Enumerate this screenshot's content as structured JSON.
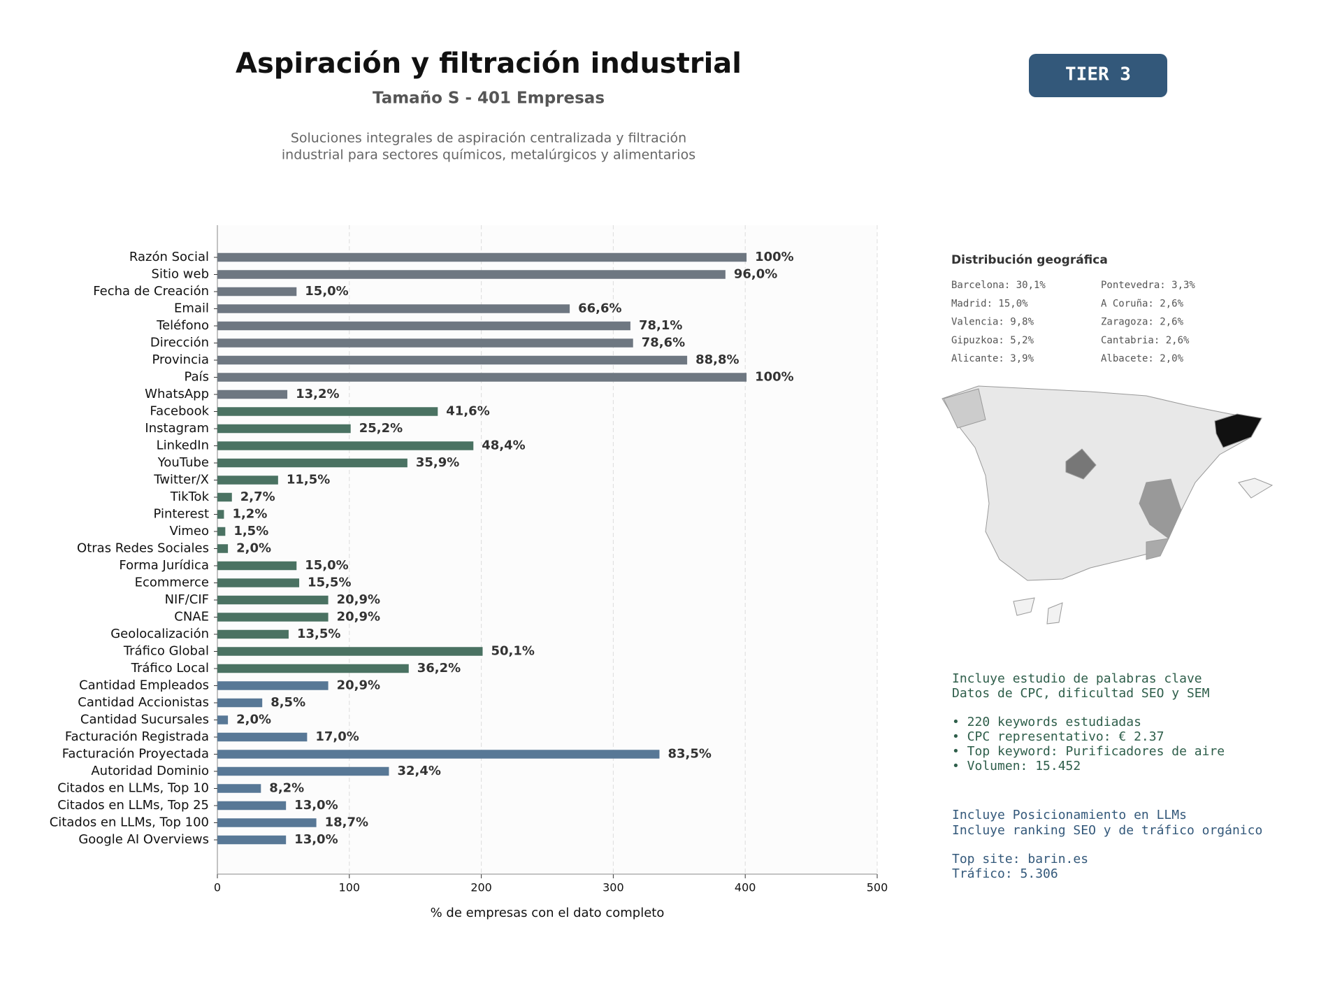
{
  "chart_data": {
    "type": "barh",
    "title": "Aspiración y filtración industrial",
    "subtitle": "Tamaño S - 401 Empresas",
    "description": [
      "Soluciones integrales de aspiración centralizada y filtración",
      "industrial para sectores químicos, metalúrgicos y alimentarios"
    ],
    "xlabel": "% de empresas con el dato completo",
    "categories": [
      "Razón Social",
      "Sitio web",
      "Fecha de Creación",
      "Email",
      "Teléfono",
      "Dirección",
      "Provincia",
      "País",
      "WhatsApp",
      "Facebook",
      "Instagram",
      "LinkedIn",
      "YouTube",
      "Twitter/X",
      "TikTok",
      "Pinterest",
      "Vimeo",
      "Otras Redes Sociales",
      "Forma Jurídica",
      "Ecommerce",
      "NIF/CIF",
      "CNAE",
      "Geolocalización",
      "Tráfico Global",
      "Tráfico Local",
      "Cantidad Empleados",
      "Cantidad Accionistas",
      "Cantidad Sucursales",
      "Facturación Registrada",
      "Facturación Proyectada",
      "Autoridad Dominio",
      "Citados en LLMs, Top 10",
      "Citados en LLMs, Top 25",
      "Citados en LLMs, Top 100",
      "Google AI Overviews"
    ],
    "values": [
      401,
      385,
      60,
      267,
      313,
      315,
      356,
      401,
      53,
      167,
      101,
      194,
      144,
      46,
      11,
      5,
      6,
      8,
      60,
      62,
      84,
      84,
      54,
      201,
      145,
      84,
      34,
      8,
      68,
      335,
      130,
      33,
      52,
      75,
      52
    ],
    "value_labels": [
      "100%",
      "96,0%",
      "15,0%",
      "66,6%",
      "78,1%",
      "78,6%",
      "88,8%",
      "100%",
      "13,2%",
      "41,6%",
      "25,2%",
      "48,4%",
      "35,9%",
      "11,5%",
      "2,7%",
      "1,2%",
      "1,5%",
      "2,0%",
      "15,0%",
      "15,5%",
      "20,9%",
      "20,9%",
      "13,5%",
      "50,1%",
      "36,2%",
      "20,9%",
      "8,5%",
      "2,0%",
      "17,0%",
      "83,5%",
      "32,4%",
      "8,2%",
      "13,0%",
      "18,7%",
      "13,0%"
    ],
    "colors": [
      "#6e7781",
      "#6e7781",
      "#6e7781",
      "#6e7781",
      "#6e7781",
      "#6e7781",
      "#6e7781",
      "#6e7781",
      "#6e7781",
      "#4a7262",
      "#4a7262",
      "#4a7262",
      "#4a7262",
      "#4a7262",
      "#4a7262",
      "#4a7262",
      "#4a7262",
      "#4a7262",
      "#4a7262",
      "#4a7262",
      "#4a7262",
      "#4a7262",
      "#4a7262",
      "#4a7262",
      "#4a7262",
      "#587896",
      "#587896",
      "#587896",
      "#587896",
      "#587896",
      "#587896",
      "#587896",
      "#587896",
      "#587896",
      "#587896"
    ],
    "xlim": [
      0,
      500
    ],
    "xticks": [
      0,
      100,
      200,
      300,
      400,
      500
    ],
    "grid": true
  },
  "badge": "TIER 3",
  "geo": {
    "title": "Distribución geográfica",
    "items": [
      "Barcelona: 30,1%",
      "Madrid: 15,0%",
      "Valencia: 9,8%",
      "Gipuzkoa: 5,2%",
      "Alicante: 3,9%",
      "Pontevedra: 3,3%",
      "A Coruña: 2,6%",
      "Zaragoza: 2,6%",
      "Cantabria: 2,6%",
      "Albacete: 2,0%"
    ]
  },
  "seo": [
    "Incluye estudio de palabras clave",
    "Datos de CPC, dificultad SEO y SEM",
    "• 220 keywords estudiadas",
    "• CPC representativo: € 2.37",
    "• Top keyword: Purificadores de aire",
    "• Volumen: 15.452"
  ],
  "llm": [
    "Incluye Posicionamiento en LLMs",
    "Incluye ranking SEO y de tráfico orgánico",
    "Top site: barin.es",
    "Tráfico: 5.306"
  ]
}
